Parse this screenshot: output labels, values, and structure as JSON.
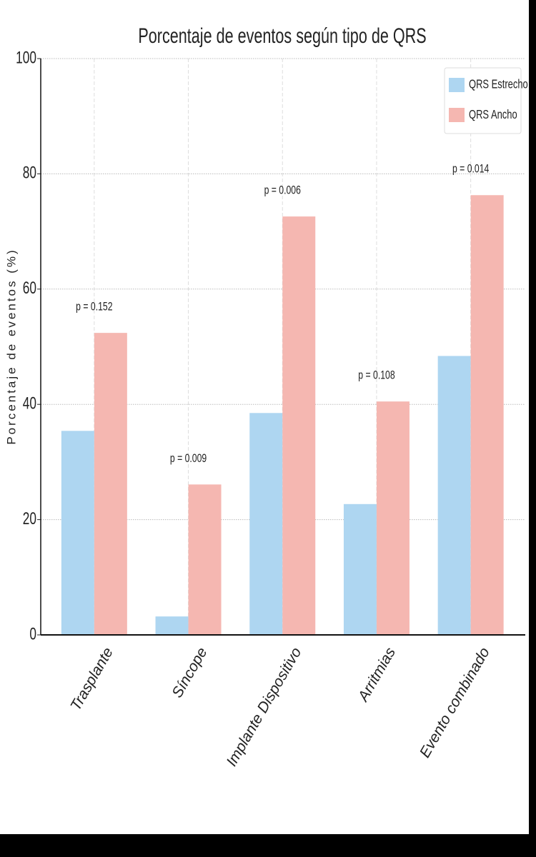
{
  "chart_data": {
    "type": "bar",
    "title": "Porcentaje de eventos según tipo de QRS",
    "y_label": "Porcentaje de eventos (%)",
    "categories": [
      "Trasplante",
      "Síncope",
      "Implante Dispositivo",
      "Arritmias",
      "Evento combinado"
    ],
    "series": [
      {
        "name": "QRS Estrecho",
        "color": "#aed6f1",
        "values": [
          35.4,
          3.2,
          38.5,
          22.7,
          48.4
        ]
      },
      {
        "name": "QRS Ancho",
        "color": "#f5b7b1",
        "values": [
          52.4,
          26.1,
          72.6,
          40.5,
          76.3
        ]
      }
    ],
    "annotations": [
      "p = 0.152",
      "p = 0.009",
      "p = 0.006",
      "p = 0.108",
      "p = 0.014"
    ],
    "ylim": [
      0,
      100
    ],
    "yticks": [
      0,
      20,
      40,
      60,
      80,
      100
    ],
    "grid": true,
    "legend": "upper right"
  }
}
